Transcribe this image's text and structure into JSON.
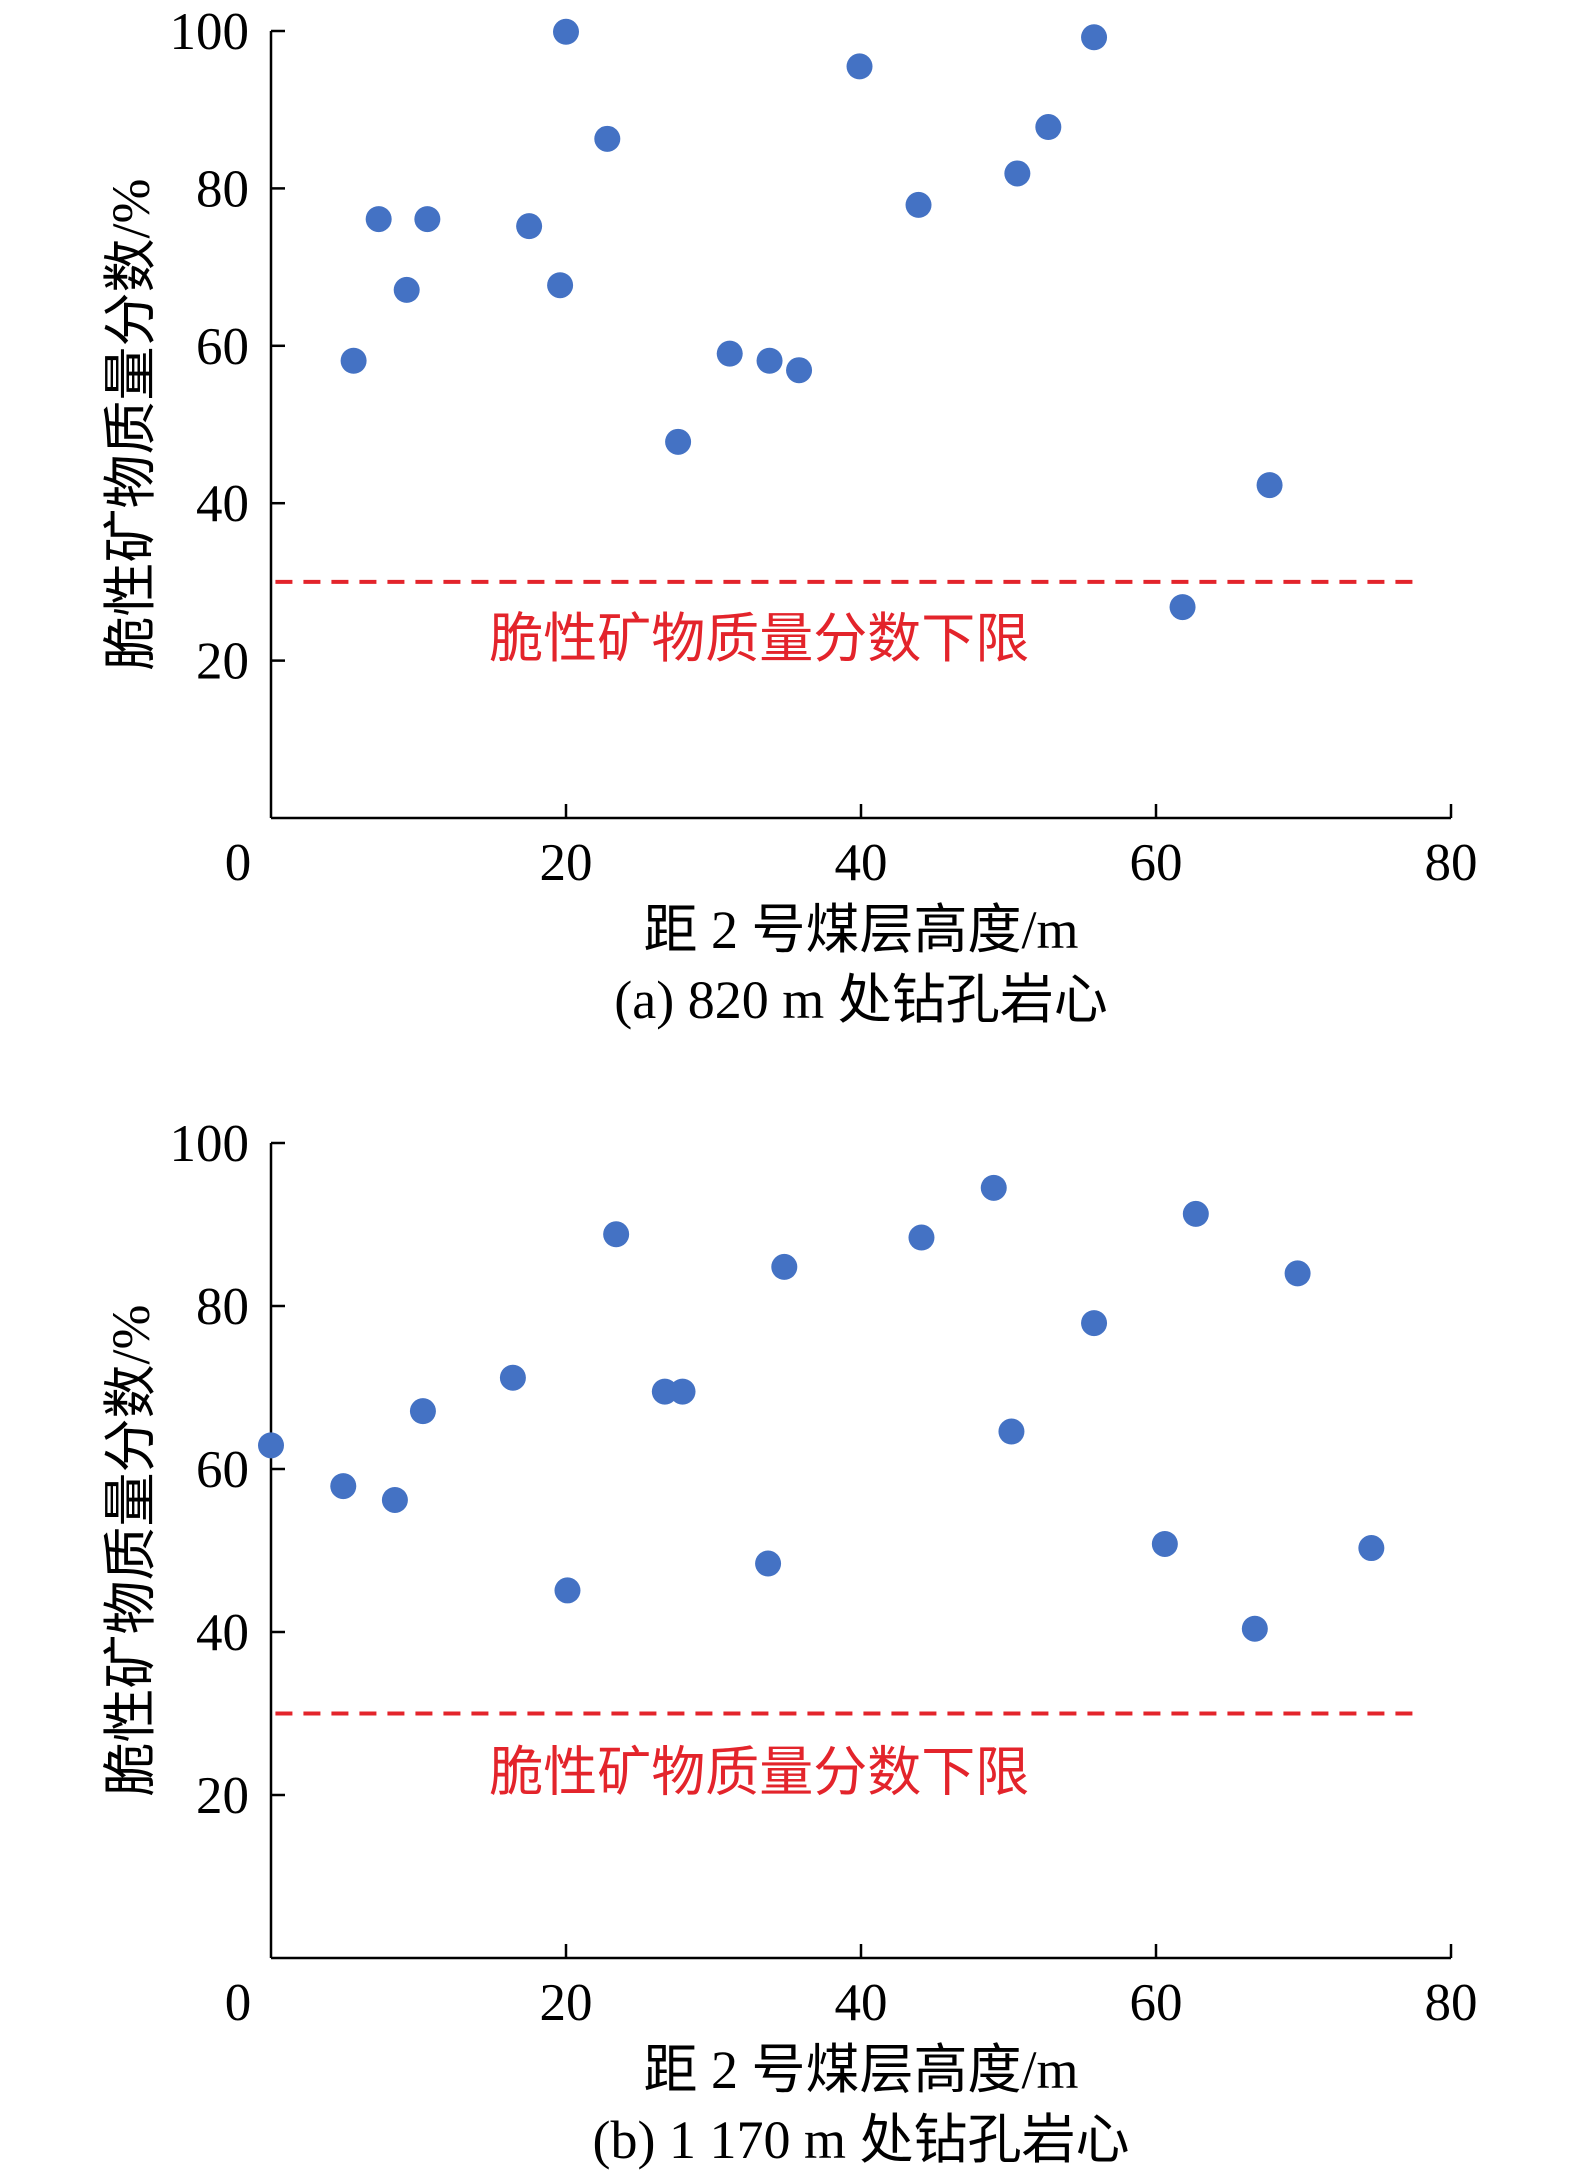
{
  "chart_data": [
    {
      "type": "scatter",
      "caption": "(a) 820 m 处钻孔岩心",
      "xlabel": "距 2 号煤层高度/m",
      "ylabel": "脆性矿物质量分数/%",
      "xlim": [
        0,
        80
      ],
      "ylim": [
        0,
        100
      ],
      "xticks": [
        0,
        20,
        40,
        60,
        80
      ],
      "yticks": [
        20,
        40,
        60,
        80,
        100
      ],
      "grid": false,
      "legend": false,
      "point_color": "#4472C4",
      "series": [
        {
          "x": [
            5.6,
            7.3,
            9.2,
            10.6,
            17.5,
            19.6,
            20.0,
            22.8,
            27.6,
            31.1,
            33.8,
            35.8,
            39.9,
            43.9,
            50.6,
            52.7,
            55.8,
            61.8,
            67.7
          ],
          "y": [
            58.1,
            76.1,
            67.1,
            76.1,
            75.2,
            67.7,
            99.9,
            86.3,
            47.8,
            59.0,
            58.1,
            56.9,
            95.5,
            77.9,
            81.9,
            87.8,
            99.2,
            26.8,
            42.3
          ]
        }
      ],
      "threshold": {
        "y": 30,
        "label": "脆性矿物质量分数下限",
        "color": "#E3242B",
        "dashed": true
      }
    },
    {
      "type": "scatter",
      "caption": "(b) 1 170 m 处钻孔岩心",
      "xlabel": "距 2 号煤层高度/m",
      "ylabel": "脆性矿物质量分数/%",
      "xlim": [
        0,
        80
      ],
      "ylim": [
        0,
        100
      ],
      "xticks": [
        0,
        20,
        40,
        60,
        80
      ],
      "yticks": [
        20,
        40,
        60,
        80,
        100
      ],
      "grid": false,
      "legend": false,
      "point_color": "#4472C4",
      "series": [
        {
          "x": [
            0.0,
            4.9,
            8.4,
            10.3,
            16.4,
            20.1,
            23.4,
            26.7,
            27.9,
            33.7,
            34.8,
            44.1,
            49.0,
            50.2,
            55.8,
            60.6,
            62.7,
            66.7,
            69.6,
            74.6
          ],
          "y": [
            62.9,
            57.9,
            56.2,
            67.1,
            71.2,
            45.1,
            88.8,
            69.5,
            69.5,
            48.4,
            84.8,
            88.4,
            94.5,
            64.6,
            77.9,
            50.8,
            91.3,
            40.4,
            84.0,
            50.3
          ]
        }
      ],
      "threshold": {
        "y": 30,
        "label": "脆性矿物质量分数下限",
        "color": "#E3242B",
        "dashed": true
      }
    }
  ]
}
